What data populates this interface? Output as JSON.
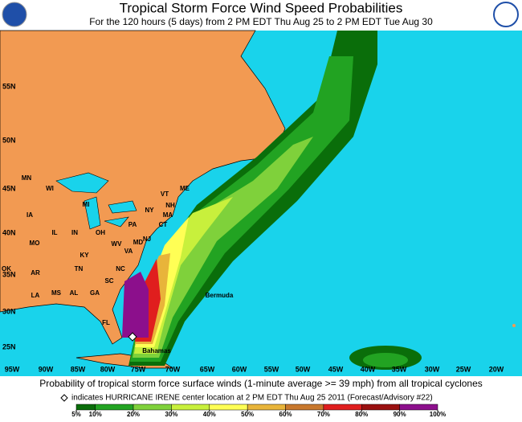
{
  "header": {
    "title": "Tropical Storm Force Wind Speed Probabilities",
    "subtitle": "For the 120 hours (5 days) from 2 PM EDT Thu Aug 25 to 2 PM EDT Tue Aug 30"
  },
  "map": {
    "latitudes": [
      "55N",
      "50N",
      "45N",
      "40N",
      "35N",
      "30N",
      "25N"
    ],
    "longitudes": [
      "95W",
      "90W",
      "85W",
      "80W",
      "75W",
      "70W",
      "65W",
      "60W",
      "55W",
      "50W",
      "45W",
      "40W",
      "35W",
      "30W",
      "25W",
      "20W"
    ],
    "states": [
      "MN",
      "WI",
      "MI",
      "IA",
      "IL",
      "IN",
      "OH",
      "PA",
      "NY",
      "VT",
      "ME",
      "NH",
      "MA",
      "CT",
      "NJ",
      "MD",
      "VA",
      "WV",
      "KY",
      "MO",
      "OK",
      "AR",
      "TN",
      "NC",
      "SC",
      "MS",
      "AL",
      "GA",
      "LA",
      "FL"
    ],
    "places": [
      "Bermuda",
      "Bahamas"
    ]
  },
  "footer": {
    "caption": "Probability of tropical storm force surface winds (1-minute average >= 39 mph) from all tropical cyclones",
    "note": "indicates HURRICANE IRENE center location at 2 PM EDT Thu Aug 25 2011 (Forecast/Advisory #22)"
  },
  "legend": {
    "ticks": [
      {
        "value": 5,
        "label": "5%"
      },
      {
        "value": 10,
        "label": "10%"
      },
      {
        "value": 20,
        "label": "20%"
      },
      {
        "value": 30,
        "label": "30%"
      },
      {
        "value": 40,
        "label": "40%"
      },
      {
        "value": 50,
        "label": "50%"
      },
      {
        "value": 60,
        "label": "60%"
      },
      {
        "value": 70,
        "label": "70%"
      },
      {
        "value": 80,
        "label": "80%"
      },
      {
        "value": 90,
        "label": "90%"
      },
      {
        "value": 100,
        "label": "100%"
      }
    ],
    "colors": [
      "#0a6e0a",
      "#22a322",
      "#7fd13b",
      "#c8f03c",
      "#ffff55",
      "#e8b43a",
      "#c8782d",
      "#e01e1e",
      "#9a1010",
      "#8c0f8c"
    ]
  }
}
